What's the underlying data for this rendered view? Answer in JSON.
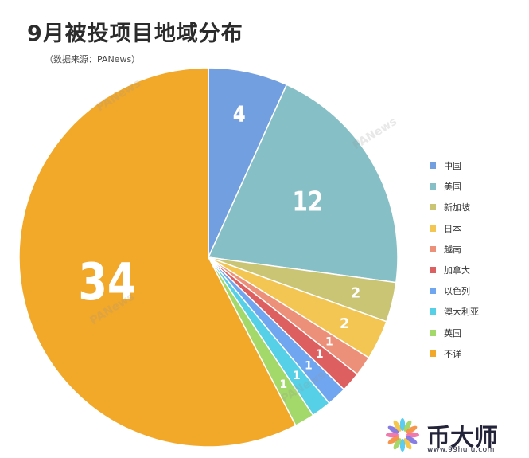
{
  "header": {
    "title": "9月被投项目地域分布",
    "subtitle": "（数据来源：PANews）"
  },
  "watermark_text": "PANews",
  "brand": {
    "name": "币大师",
    "url": "www.99hufu.com",
    "colors": [
      "#f06aa3",
      "#7a6fe0",
      "#f4c23a",
      "#4ac6ee",
      "#9bd35a",
      "#f58b3a"
    ]
  },
  "chart_data": {
    "type": "pie",
    "start": "12 o'clock",
    "direction": "clockwise",
    "legend": "right",
    "slices": [
      {
        "label": "中国",
        "value": 4,
        "color": "#729fe0"
      },
      {
        "label": "美国",
        "value": 12,
        "color": "#86c0c6"
      },
      {
        "label": "新加坡",
        "value": 2,
        "color": "#c9c575"
      },
      {
        "label": "日本",
        "value": 2,
        "color": "#f3c553"
      },
      {
        "label": "越南",
        "value": 1,
        "color": "#ec9079"
      },
      {
        "label": "加拿大",
        "value": 1,
        "color": "#dd5f5f"
      },
      {
        "label": "以色列",
        "value": 1,
        "color": "#6fa6ef"
      },
      {
        "label": "澳大利亚",
        "value": 1,
        "color": "#55d0e6"
      },
      {
        "label": "英国",
        "value": 1,
        "color": "#a3d86a"
      },
      {
        "label": "不详",
        "value": 34,
        "color": "#f2a829"
      }
    ]
  }
}
